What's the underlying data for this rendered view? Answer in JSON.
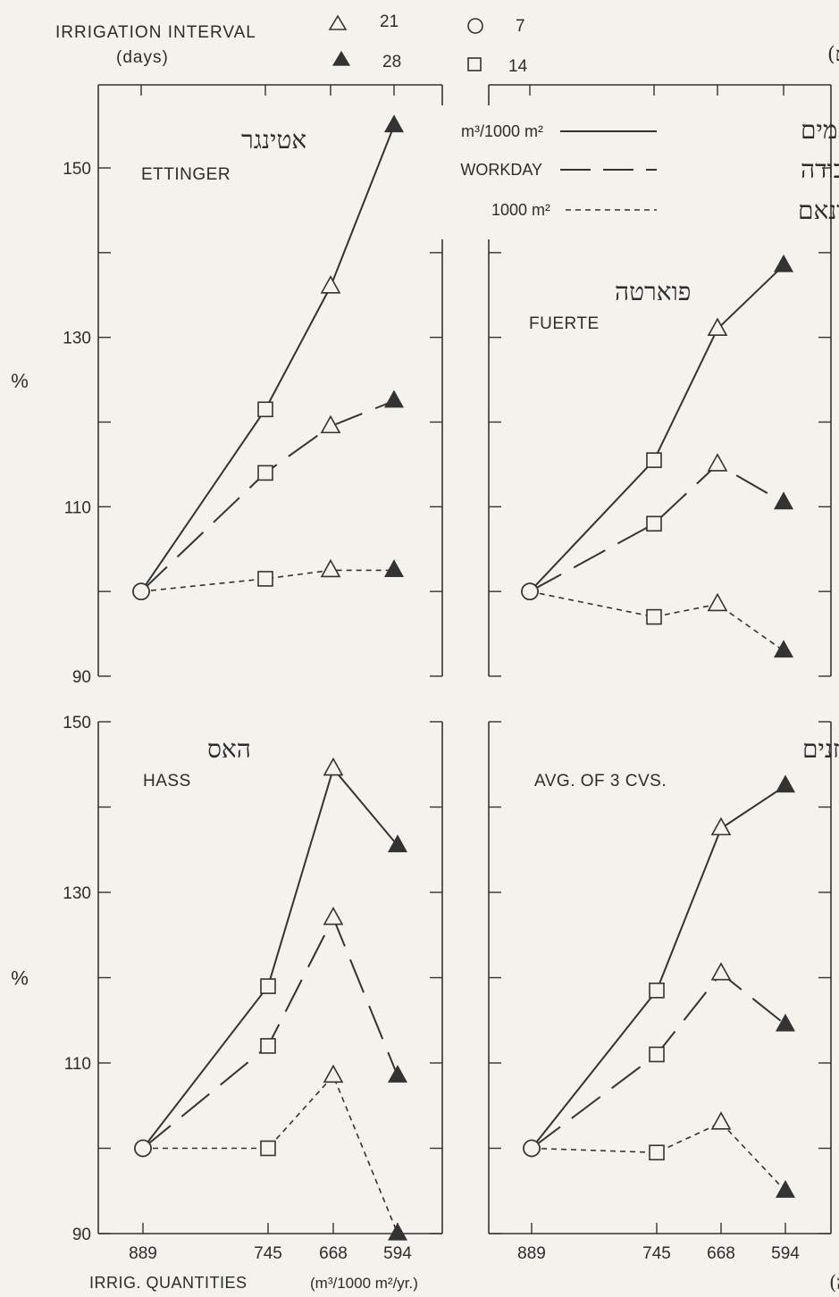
{
  "header": {
    "irrigation_interval_label": "IRRIGATION INTERVAL",
    "irrigation_interval_unit": "(days)",
    "hebrew_interval_label": "מירווח ההשקיה (ימים)"
  },
  "interval_legend": [
    {
      "marker": "triangle-open",
      "label": "21"
    },
    {
      "marker": "circle-open",
      "label": "7"
    },
    {
      "marker": "triangle-filled",
      "label": "28"
    },
    {
      "marker": "square-open",
      "label": "14"
    }
  ],
  "line_legend": [
    {
      "style": "solid",
      "label": "m³/1000 m²",
      "hebrew": "מ\"ק/ד' מים"
    },
    {
      "style": "long-dash",
      "label": "WORKDAY",
      "hebrew": "יום עבודה"
    },
    {
      "style": "short-dash",
      "label": "1000 m²",
      "hebrew": "דונאם"
    }
  ],
  "footer": {
    "xlabel": "IRRIG. QUANTITIES",
    "xunit": "(m³/1000 m²/yr.)",
    "hebrew_xlabel": "כמות המים (מ\"ק/ד/שנה)"
  },
  "colors": {
    "ink": "#2c2c2c",
    "paper": "#f4f2ec",
    "filled_marker": "#333333"
  },
  "chart_data": [
    {
      "type": "line",
      "title": "ETTINGER",
      "title_hebrew": "אטינגר",
      "categories": [
        "889",
        "745",
        "668",
        "594"
      ],
      "markers": [
        "circle-open",
        "square-open",
        "triangle-open",
        "triangle-filled"
      ],
      "ylabel": "%",
      "ylim": [
        90,
        160
      ],
      "yticks": [
        "90",
        "110",
        "130",
        "150"
      ],
      "series": [
        {
          "name": "m³/1000 m²",
          "style": "solid",
          "values": [
            100,
            121.5,
            136,
            155
          ]
        },
        {
          "name": "WORKDAY",
          "style": "long-dash",
          "values": [
            100,
            114,
            119.5,
            122.5
          ]
        },
        {
          "name": "1000 m²",
          "style": "short-dash",
          "values": [
            100,
            101.5,
            102.5,
            102.5
          ]
        }
      ]
    },
    {
      "type": "line",
      "title": "FUERTE",
      "title_hebrew": "פוארטה",
      "categories": [
        "889",
        "745",
        "668",
        "594"
      ],
      "markers": [
        "circle-open",
        "square-open",
        "triangle-open",
        "triangle-filled"
      ],
      "ylabel": "",
      "ylim": [
        90,
        160
      ],
      "yticks": [],
      "series": [
        {
          "name": "m³/1000 m²",
          "style": "solid",
          "values": [
            100,
            115.5,
            131,
            138.5
          ]
        },
        {
          "name": "WORKDAY",
          "style": "long-dash",
          "values": [
            100,
            108,
            115,
            110.5
          ]
        },
        {
          "name": "1000 m²",
          "style": "short-dash",
          "values": [
            100,
            97,
            98.5,
            93
          ]
        }
      ]
    },
    {
      "type": "line",
      "title": "HASS",
      "title_hebrew": "האס",
      "categories": [
        "889",
        "745",
        "668",
        "594"
      ],
      "markers": [
        "circle-open",
        "square-open",
        "triangle-open",
        "triangle-filled"
      ],
      "ylabel": "%",
      "ylim": [
        90,
        150
      ],
      "yticks": [
        "90",
        "110",
        "130",
        "150"
      ],
      "series": [
        {
          "name": "m³/1000 m²",
          "style": "solid",
          "values": [
            100,
            119,
            144.5,
            135.5
          ]
        },
        {
          "name": "WORKDAY",
          "style": "long-dash",
          "values": [
            100,
            112,
            127,
            108.5
          ]
        },
        {
          "name": "1000 m²",
          "style": "short-dash",
          "values": [
            100,
            100,
            108.5,
            90
          ]
        }
      ]
    },
    {
      "type": "line",
      "title": "AVG. OF 3 CVS.",
      "title_hebrew": "ממוצע לשלשת הזנים",
      "categories": [
        "889",
        "745",
        "668",
        "594"
      ],
      "markers": [
        "circle-open",
        "square-open",
        "triangle-open",
        "triangle-filled"
      ],
      "ylabel": "",
      "ylim": [
        90,
        150
      ],
      "yticks": [],
      "series": [
        {
          "name": "m³/1000 m²",
          "style": "solid",
          "values": [
            100,
            118.5,
            137.5,
            142.5
          ]
        },
        {
          "name": "WORKDAY",
          "style": "long-dash",
          "values": [
            100,
            111,
            120.5,
            114.5
          ]
        },
        {
          "name": "1000 m²",
          "style": "short-dash",
          "values": [
            100,
            99.5,
            103,
            95
          ]
        }
      ]
    }
  ]
}
